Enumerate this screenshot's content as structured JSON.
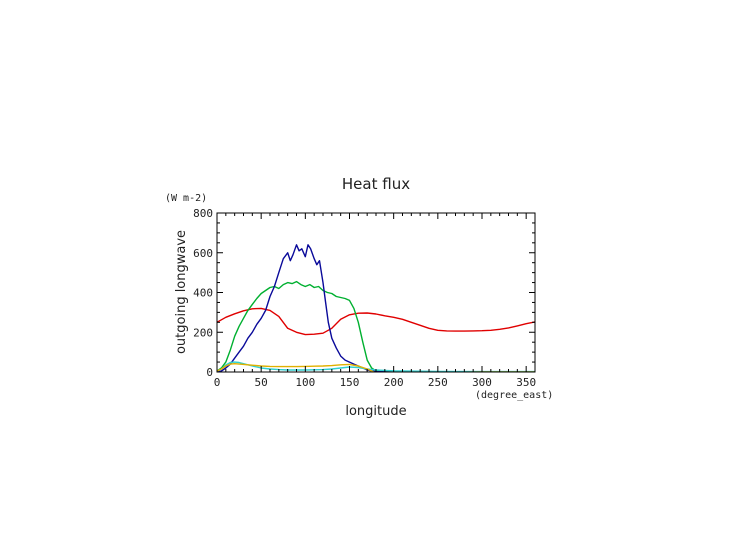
{
  "chart_data": {
    "type": "line",
    "title": "Heat flux",
    "xlabel": "longitude",
    "ylabel": "outgoing longwave",
    "x_units": "(degree_east)",
    "y_units": "(W m-2)",
    "xlim": [
      0,
      360
    ],
    "ylim": [
      0,
      800
    ],
    "x_ticks": [
      0,
      50,
      100,
      150,
      200,
      250,
      300,
      350
    ],
    "y_ticks": [
      0,
      200,
      400,
      600,
      800
    ],
    "grid": false,
    "series": [
      {
        "color": "#e00000",
        "x": [
          0,
          10,
          20,
          30,
          40,
          50,
          60,
          70,
          80,
          90,
          100,
          110,
          120,
          130,
          140,
          150,
          160,
          170,
          180,
          190,
          200,
          210,
          220,
          230,
          240,
          250,
          260,
          270,
          280,
          290,
          300,
          310,
          320,
          330,
          340,
          350,
          360
        ],
        "y": [
          250,
          275,
          293,
          308,
          318,
          320,
          310,
          280,
          220,
          200,
          188,
          190,
          195,
          220,
          265,
          288,
          296,
          297,
          292,
          283,
          275,
          265,
          250,
          235,
          220,
          210,
          207,
          206,
          206,
          207,
          208,
          210,
          215,
          222,
          232,
          243,
          252
        ]
      },
      {
        "color": "#00b030",
        "x": [
          0,
          5,
          10,
          15,
          20,
          25,
          30,
          35,
          40,
          45,
          50,
          55,
          60,
          65,
          70,
          75,
          80,
          85,
          90,
          95,
          100,
          105,
          110,
          115,
          120,
          125,
          130,
          135,
          140,
          145,
          150,
          155,
          160,
          165,
          170,
          175,
          180,
          185,
          190,
          200,
          250,
          300,
          360
        ],
        "y": [
          5,
          20,
          50,
          110,
          180,
          230,
          270,
          310,
          340,
          370,
          395,
          410,
          425,
          430,
          420,
          440,
          450,
          445,
          455,
          440,
          430,
          440,
          425,
          430,
          410,
          400,
          395,
          380,
          375,
          370,
          360,
          320,
          250,
          150,
          60,
          20,
          5,
          3,
          2,
          1,
          0,
          0,
          0
        ]
      },
      {
        "color": "#0a0a9a",
        "x": [
          0,
          5,
          10,
          15,
          20,
          25,
          30,
          35,
          40,
          45,
          50,
          55,
          60,
          65,
          70,
          75,
          80,
          83,
          86,
          90,
          93,
          96,
          100,
          103,
          106,
          110,
          113,
          116,
          120,
          123,
          126,
          130,
          135,
          140,
          145,
          150,
          155,
          160,
          165,
          170,
          175,
          180,
          190,
          200,
          250,
          300,
          360
        ],
        "y": [
          0,
          5,
          20,
          40,
          70,
          100,
          130,
          170,
          200,
          240,
          270,
          310,
          380,
          430,
          500,
          570,
          600,
          560,
          590,
          640,
          610,
          620,
          580,
          640,
          620,
          570,
          540,
          560,
          450,
          350,
          250,
          170,
          120,
          80,
          60,
          50,
          40,
          30,
          20,
          10,
          5,
          2,
          1,
          0,
          0,
          0,
          0
        ]
      },
      {
        "color": "#30d0d0",
        "x": [
          0,
          5,
          10,
          15,
          20,
          25,
          30,
          35,
          40,
          45,
          50,
          60,
          70,
          80,
          90,
          100,
          110,
          120,
          130,
          140,
          150,
          160,
          170,
          180,
          190,
          200,
          250,
          300,
          360
        ],
        "y": [
          5,
          15,
          35,
          48,
          50,
          48,
          42,
          36,
          30,
          25,
          20,
          15,
          12,
          10,
          10,
          10,
          11,
          12,
          15,
          20,
          25,
          22,
          15,
          10,
          8,
          6,
          3,
          2,
          2
        ]
      },
      {
        "color": "#e0b000",
        "x": [
          0,
          5,
          10,
          15,
          20,
          25,
          30,
          40,
          50,
          60,
          70,
          80,
          90,
          100,
          110,
          120,
          130,
          140,
          150,
          160,
          170,
          175,
          180,
          190,
          200,
          220,
          240,
          250,
          260,
          280,
          300,
          360
        ],
        "y": [
          5,
          15,
          30,
          40,
          42,
          40,
          38,
          34,
          30,
          28,
          27,
          27,
          27,
          28,
          29,
          30,
          32,
          36,
          38,
          30,
          15,
          5,
          -5,
          -10,
          -8,
          -6,
          -4,
          -3,
          -2,
          -1,
          0,
          0
        ]
      }
    ]
  }
}
